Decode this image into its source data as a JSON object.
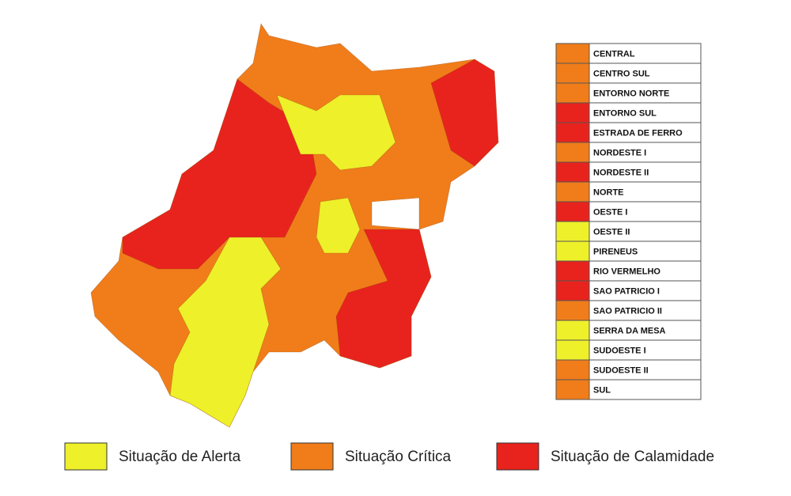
{
  "map": {
    "regions": [
      {
        "name": "CENTRAL",
        "color": "#f07d1a"
      },
      {
        "name": "CENTRO SUL",
        "color": "#f07d1a"
      },
      {
        "name": "ENTORNO NORTE",
        "color": "#f07d1a"
      },
      {
        "name": "ENTORNO SUL",
        "color": "#e8231d"
      },
      {
        "name": "ESTRADA DE FERRO",
        "color": "#e8231d"
      },
      {
        "name": "NORDESTE I",
        "color": "#f07d1a"
      },
      {
        "name": "NORDESTE II",
        "color": "#e8231d"
      },
      {
        "name": "NORTE",
        "color": "#f07d1a"
      },
      {
        "name": "OESTE I",
        "color": "#e8231d"
      },
      {
        "name": "OESTE II",
        "color": "#eef02a"
      },
      {
        "name": "PIRENEUS",
        "color": "#eef02a"
      },
      {
        "name": "RIO VERMELHO",
        "color": "#e8231d"
      },
      {
        "name": "SAO PATRICIO I",
        "color": "#e8231d"
      },
      {
        "name": "SAO PATRICIO II",
        "color": "#f07d1a"
      },
      {
        "name": "SERRA DA MESA",
        "color": "#eef02a"
      },
      {
        "name": "SUDOESTE I",
        "color": "#eef02a"
      },
      {
        "name": "SUDOESTE II",
        "color": "#f07d1a"
      },
      {
        "name": "SUL",
        "color": "#f07d1a"
      }
    ],
    "legend": [
      {
        "label": "Situação de Alerta",
        "color": "#eef02a"
      },
      {
        "label": "Situação Crítica",
        "color": "#f07d1a"
      },
      {
        "label": "Situação de Calamidade",
        "color": "#e8231d"
      }
    ]
  }
}
